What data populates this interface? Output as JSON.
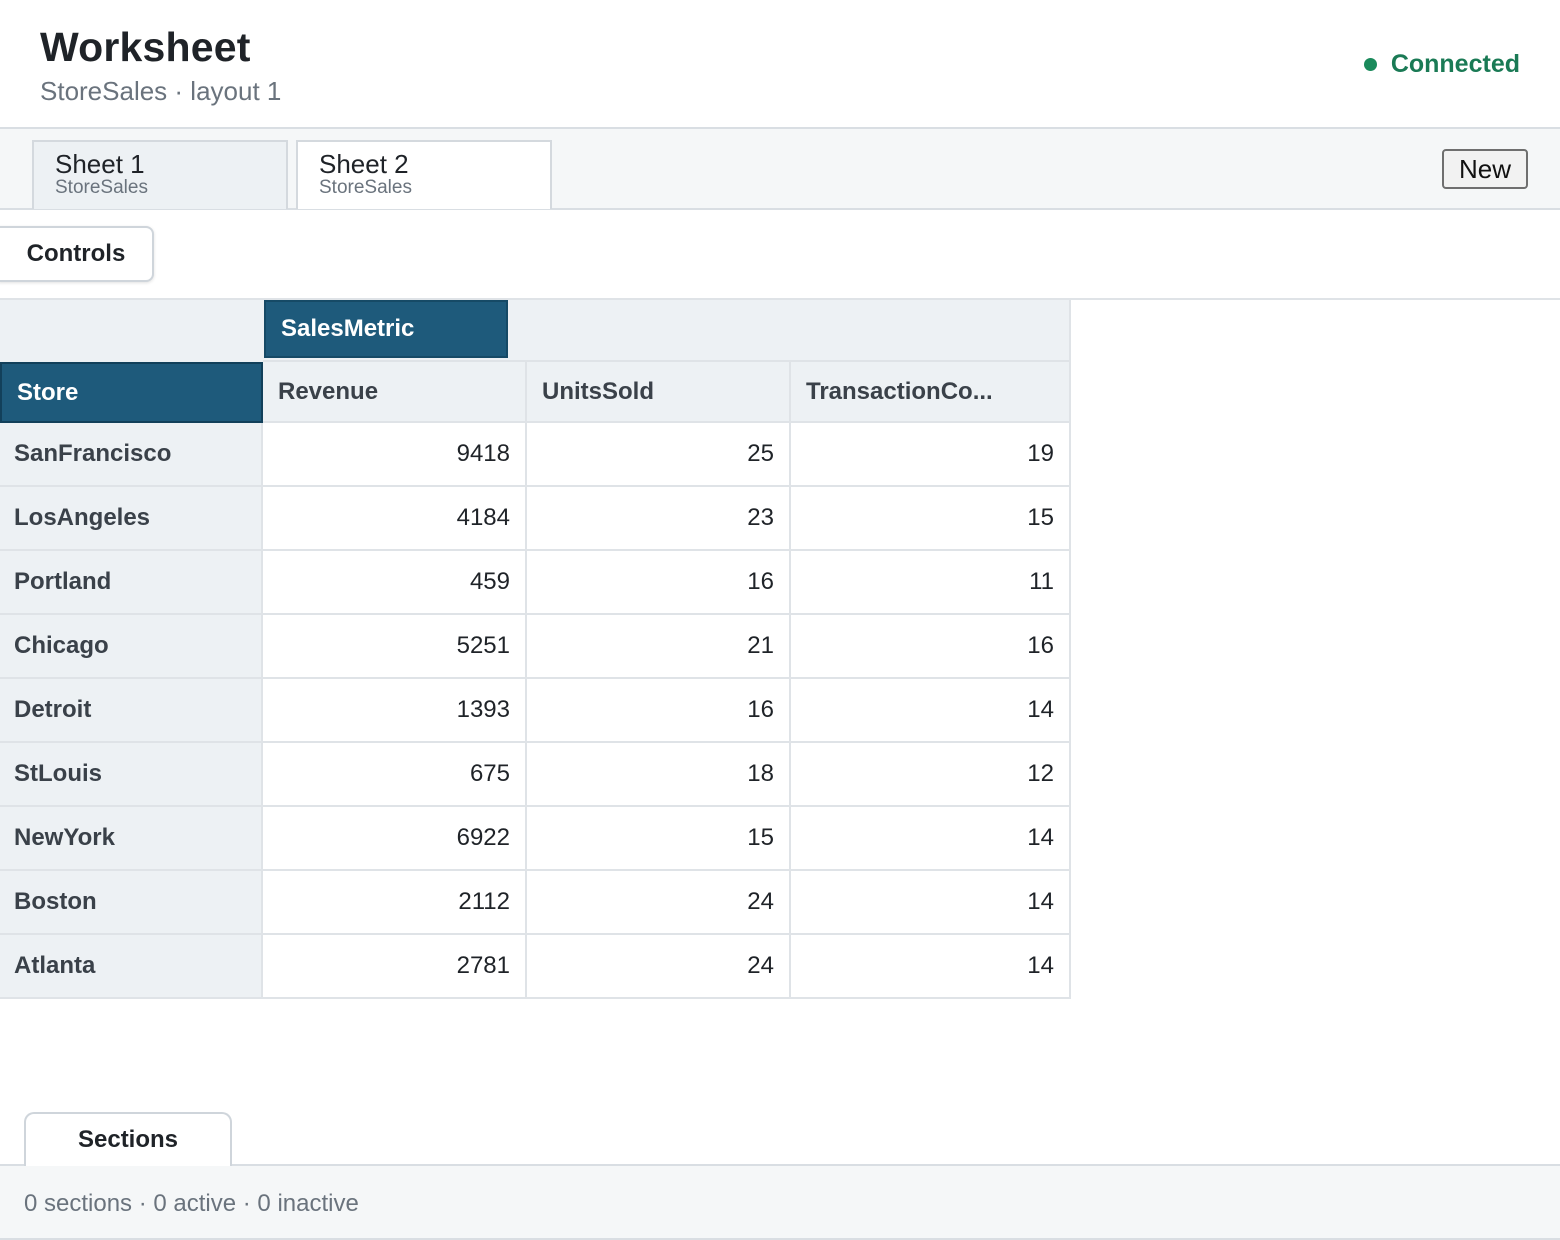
{
  "header": {
    "title": "Worksheet",
    "subtitle": "StoreSales · layout 1",
    "status": "Connected",
    "status_color": "#1a8a5b"
  },
  "tabs": [
    {
      "label": "Sheet 1",
      "source": "StoreSales"
    },
    {
      "label": "Sheet 2",
      "source": "StoreSales"
    }
  ],
  "toolbar": {
    "new_label": "New",
    "controls_label": "Controls"
  },
  "pivot": {
    "column_field": "SalesMetric",
    "row_field": "Store",
    "columns": [
      "Revenue",
      "UnitsSold",
      "TransactionCo..."
    ],
    "rows": [
      {
        "store": "SanFrancisco",
        "values": [
          9418,
          25,
          19
        ]
      },
      {
        "store": "LosAngeles",
        "values": [
          4184,
          23,
          15
        ]
      },
      {
        "store": "Portland",
        "values": [
          459,
          16,
          11
        ]
      },
      {
        "store": "Chicago",
        "values": [
          5251,
          21,
          16
        ]
      },
      {
        "store": "Detroit",
        "values": [
          1393,
          16,
          14
        ]
      },
      {
        "store": "StLouis",
        "values": [
          675,
          18,
          12
        ]
      },
      {
        "store": "NewYork",
        "values": [
          6922,
          15,
          14
        ]
      },
      {
        "store": "Boston",
        "values": [
          2112,
          24,
          14
        ]
      },
      {
        "store": "Atlanta",
        "values": [
          2781,
          24,
          14
        ]
      }
    ],
    "header_color": "#1e5a7b"
  },
  "sections": {
    "tab_label": "Sections",
    "summary": "0 sections · 0 active · 0 inactive"
  }
}
